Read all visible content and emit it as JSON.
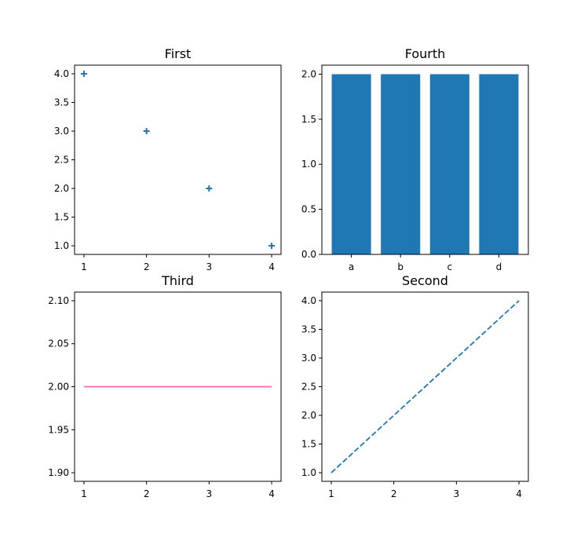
{
  "chart_data": [
    {
      "id": "first",
      "type": "scatter",
      "title": "First",
      "marker": "plus",
      "color": "#1f77b4",
      "x": [
        1,
        2,
        3,
        4
      ],
      "y": [
        4,
        3,
        2,
        1
      ],
      "xlim": [
        0.85,
        4.15
      ],
      "ylim": [
        0.85,
        4.15
      ],
      "xticks": [
        1,
        2,
        3,
        4
      ],
      "yticks": [
        1.0,
        1.5,
        2.0,
        2.5,
        3.0,
        3.5,
        4.0
      ],
      "xtick_labels": [
        "1",
        "2",
        "3",
        "4"
      ],
      "ytick_labels": [
        "1.0",
        "1.5",
        "2.0",
        "2.5",
        "3.0",
        "3.5",
        "4.0"
      ],
      "grid": false
    },
    {
      "id": "fourth",
      "type": "bar",
      "title": "Fourth",
      "color": "#1f77b4",
      "categories": [
        "a",
        "b",
        "c",
        "d"
      ],
      "values": [
        2,
        2,
        2,
        2
      ],
      "ylim": [
        0,
        2.1
      ],
      "yticks": [
        0.0,
        0.5,
        1.0,
        1.5,
        2.0
      ],
      "ytick_labels": [
        "0.0",
        "0.5",
        "1.0",
        "1.5",
        "2.0"
      ],
      "grid": false
    },
    {
      "id": "third",
      "type": "line",
      "title": "Third",
      "color": "#ff69b4",
      "linestyle": "solid",
      "x": [
        1,
        2,
        3,
        4
      ],
      "y": [
        2,
        2,
        2,
        2
      ],
      "xlim": [
        0.85,
        4.15
      ],
      "ylim": [
        1.89,
        2.11
      ],
      "xticks": [
        1,
        2,
        3,
        4
      ],
      "yticks": [
        1.9,
        1.95,
        2.0,
        2.05,
        2.1
      ],
      "xtick_labels": [
        "1",
        "2",
        "3",
        "4"
      ],
      "ytick_labels": [
        "1.90",
        "1.95",
        "2.00",
        "2.05",
        "2.10"
      ],
      "grid": false
    },
    {
      "id": "second",
      "type": "line",
      "title": "Second",
      "color": "#1f77b4",
      "linestyle": "dashed",
      "x": [
        1,
        2,
        3,
        4
      ],
      "y": [
        1,
        2,
        3,
        4
      ],
      "xlim": [
        0.85,
        4.15
      ],
      "ylim": [
        0.85,
        4.15
      ],
      "xticks": [
        1,
        2,
        3,
        4
      ],
      "yticks": [
        1.0,
        1.5,
        2.0,
        2.5,
        3.0,
        3.5,
        4.0
      ],
      "xtick_labels": [
        "1",
        "2",
        "3",
        "4"
      ],
      "ytick_labels": [
        "1.0",
        "1.5",
        "2.0",
        "2.5",
        "3.0",
        "3.5",
        "4.0"
      ],
      "grid": false
    }
  ]
}
